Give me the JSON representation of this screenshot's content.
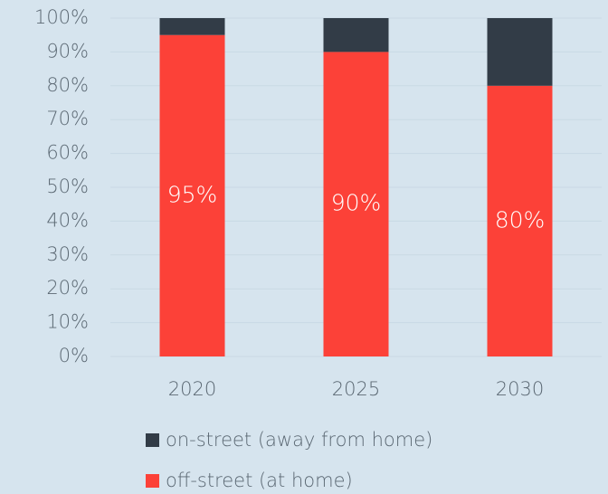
{
  "chart_data": {
    "type": "stacked_bar",
    "categories": [
      "2020",
      "2025",
      "2030"
    ],
    "series": [
      {
        "name": "off-street (at home)",
        "color": "#fc4138",
        "values": [
          95,
          90,
          80
        ],
        "value_labels": [
          "95%",
          "90%",
          "80%"
        ]
      },
      {
        "name": "on-street (away from home)",
        "color": "#323c47",
        "values": [
          5,
          10,
          20
        ]
      }
    ],
    "ylim": [
      0,
      100
    ],
    "yticks": [
      {
        "value": 0,
        "label": "0%"
      },
      {
        "value": 10,
        "label": "10%"
      },
      {
        "value": 20,
        "label": "20%"
      },
      {
        "value": 30,
        "label": "30%"
      },
      {
        "value": 40,
        "label": "40%"
      },
      {
        "value": 50,
        "label": "50%"
      },
      {
        "value": 60,
        "label": "60%"
      },
      {
        "value": 70,
        "label": "70%"
      },
      {
        "value": 80,
        "label": "80%"
      },
      {
        "value": 90,
        "label": "90%"
      },
      {
        "value": 100,
        "label": "100%"
      }
    ],
    "grid": true
  }
}
